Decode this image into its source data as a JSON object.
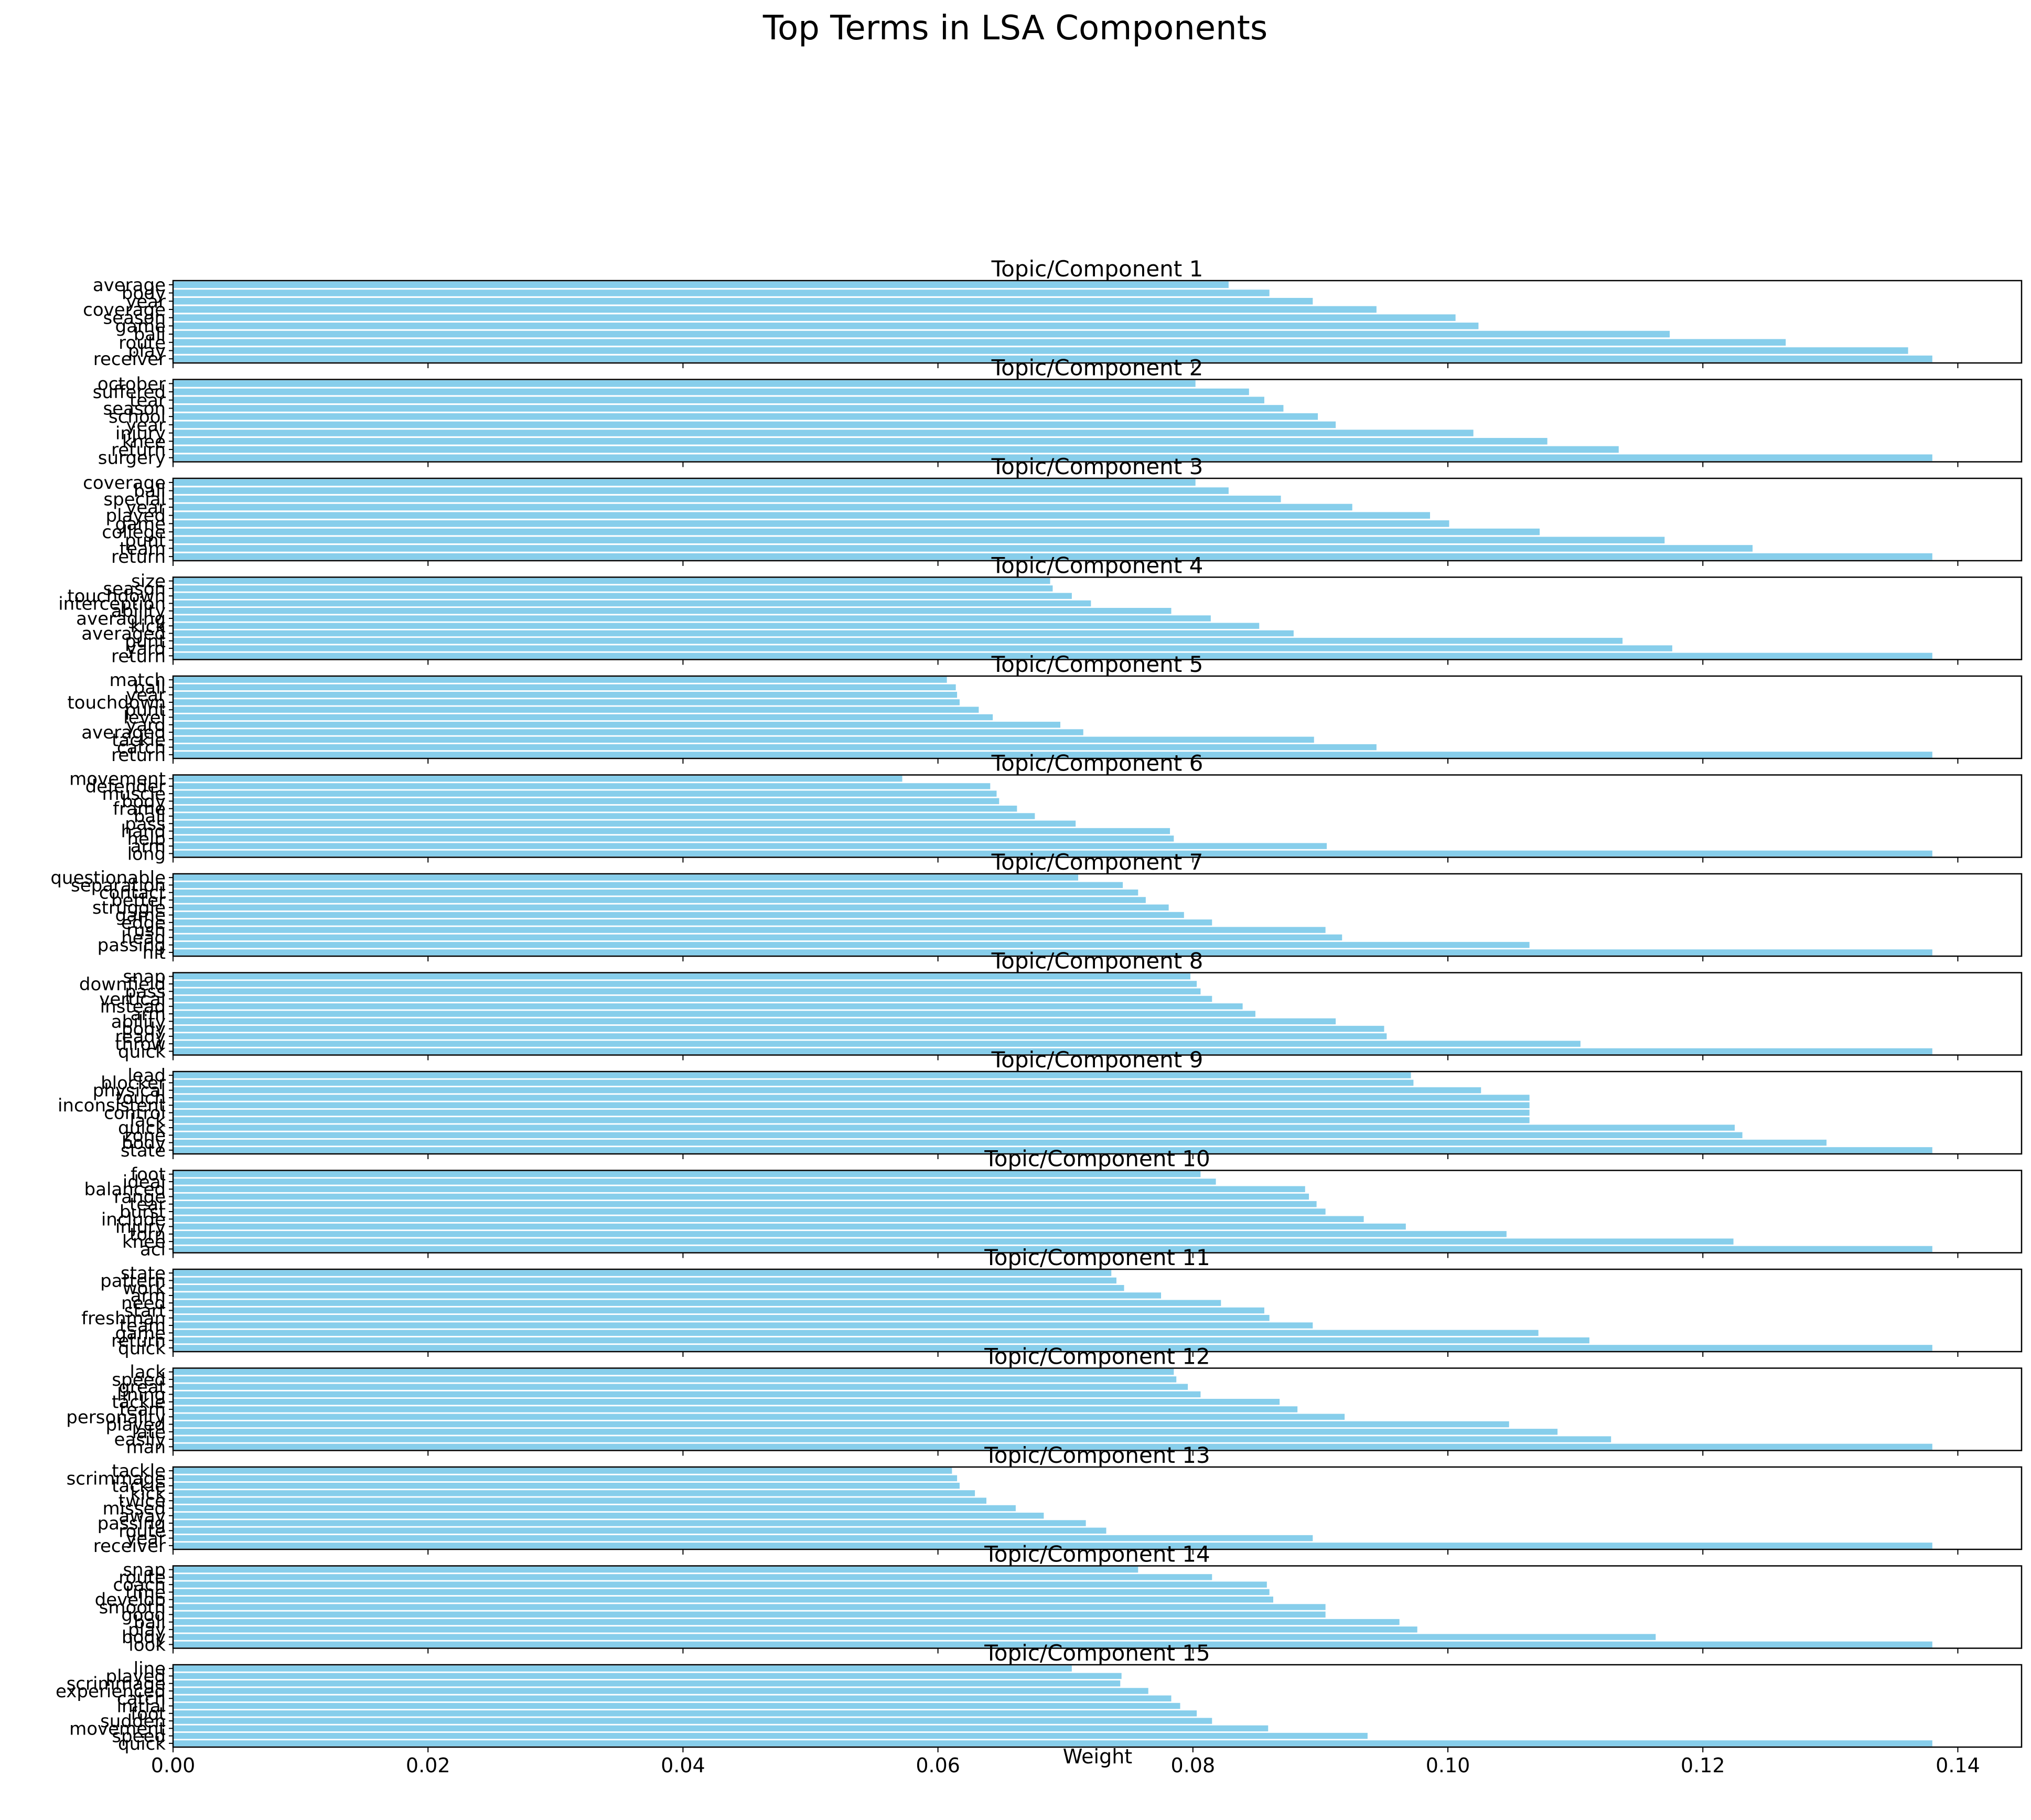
{
  "chart_data": {
    "type": "bar",
    "orientation": "horizontal",
    "title": "Top Terms in LSA Components",
    "xlabel": "Weight",
    "ylabel": "",
    "xlim": [
      0,
      0.145
    ],
    "x_ticks": [
      "0.00",
      "0.02",
      "0.04",
      "0.06",
      "0.08",
      "0.10",
      "0.12",
      "0.14"
    ],
    "grid": false,
    "bar_color": "#87CEEB",
    "panels": [
      {
        "title": "Topic/Component 1",
        "terms": [
          "receiver",
          "play",
          "route",
          "ball",
          "game",
          "season",
          "coverage",
          "year",
          "body",
          "average"
        ],
        "values": [
          0.138,
          0.1361,
          0.1265,
          0.1174,
          0.1024,
          0.1006,
          0.0944,
          0.0894,
          0.086,
          0.0828
        ]
      },
      {
        "title": "Topic/Component 2",
        "terms": [
          "surgery",
          "return",
          "knee",
          "injury",
          "year",
          "school",
          "season",
          "tear",
          "suffered",
          "october"
        ],
        "values": [
          0.138,
          0.1134,
          0.1078,
          0.102,
          0.0912,
          0.0898,
          0.0871,
          0.0856,
          0.0844,
          0.0802
        ]
      },
      {
        "title": "Topic/Component 3",
        "terms": [
          "return",
          "team",
          "punt",
          "college",
          "game",
          "played",
          "year",
          "special",
          "ball",
          "coverage"
        ],
        "values": [
          0.138,
          0.1239,
          0.117,
          0.1072,
          0.1001,
          0.0986,
          0.0925,
          0.0869,
          0.0828,
          0.0802
        ]
      },
      {
        "title": "Topic/Component 4",
        "terms": [
          "return",
          "yard",
          "punt",
          "averaged",
          "kick",
          "averaging",
          "ability",
          "interception",
          "touchdown",
          "season",
          "size"
        ],
        "values": [
          0.138,
          0.1176,
          0.1137,
          0.0879,
          0.0852,
          0.0814,
          0.0783,
          0.072,
          0.0705,
          0.069,
          0.0688
        ]
      },
      {
        "title": "Topic/Component 5",
        "terms": [
          "return",
          "catch",
          "tackle",
          "averaged",
          "yard",
          "level",
          "punt",
          "touchdown",
          "year",
          "ball",
          "match"
        ],
        "values": [
          0.138,
          0.0944,
          0.0895,
          0.0714,
          0.0696,
          0.0643,
          0.0632,
          0.0617,
          0.0615,
          0.0614,
          0.0607
        ]
      },
      {
        "title": "Topic/Component 6",
        "terms": [
          "long",
          "arm",
          "help",
          "hand",
          "pass",
          "ball",
          "frame",
          "body",
          "muscle",
          "defender",
          "movement"
        ],
        "values": [
          0.138,
          0.0905,
          0.0785,
          0.0782,
          0.0708,
          0.0676,
          0.0662,
          0.0648,
          0.0646,
          0.0641,
          0.0572
        ]
      },
      {
        "title": "Topic/Component 7",
        "terms": [
          "hit",
          "passing",
          "head",
          "rush",
          "edge",
          "game",
          "struggle",
          "better",
          "contact",
          "separation",
          "questionable"
        ],
        "values": [
          0.138,
          0.1064,
          0.0917,
          0.0904,
          0.0815,
          0.0793,
          0.0781,
          0.0763,
          0.0757,
          0.0745,
          0.071
        ]
      },
      {
        "title": "Topic/Component 8",
        "terms": [
          "quick",
          "throw",
          "ready",
          "body",
          "ability",
          "arm",
          "instead",
          "vertical",
          "pass",
          "downfield",
          "snap"
        ],
        "values": [
          0.138,
          0.1104,
          0.0952,
          0.095,
          0.0912,
          0.0849,
          0.0839,
          0.0815,
          0.0806,
          0.0803,
          0.0798
        ]
      },
      {
        "title": "Topic/Component 9",
        "terms": [
          "state",
          "body",
          "zone",
          "quick",
          "lack",
          "control",
          "inconsistent",
          "touch",
          "physical",
          "blocker",
          "lead"
        ],
        "values": [
          0.138,
          0.1297,
          0.1231,
          0.1225,
          0.1064,
          0.1064,
          0.1064,
          0.1064,
          0.1026,
          0.0973,
          0.0971
        ]
      },
      {
        "title": "Topic/Component 10",
        "terms": [
          "acl",
          "knee",
          "torn",
          "injury",
          "include",
          "burst",
          "tear",
          "range",
          "balanced",
          "ideal",
          "foot"
        ],
        "values": [
          0.138,
          0.1224,
          0.1046,
          0.0967,
          0.0934,
          0.0904,
          0.0897,
          0.0891,
          0.0888,
          0.0818,
          0.0806
        ]
      },
      {
        "title": "Topic/Component 11",
        "terms": [
          "quick",
          "return",
          "game",
          "team",
          "freshman",
          "start",
          "need",
          "arm",
          "work",
          "pattern",
          "state"
        ],
        "values": [
          0.138,
          0.1111,
          0.1071,
          0.0894,
          0.086,
          0.0856,
          0.0822,
          0.0775,
          0.0746,
          0.074,
          0.0736
        ]
      },
      {
        "title": "Topic/Component 12",
        "terms": [
          "man",
          "easily",
          "late",
          "played",
          "personality",
          "team",
          "tackle",
          "lining",
          "great",
          "speed",
          "lack"
        ],
        "values": [
          0.138,
          0.1128,
          0.1086,
          0.1048,
          0.0919,
          0.0882,
          0.0868,
          0.0806,
          0.0796,
          0.0787,
          0.0785
        ]
      },
      {
        "title": "Topic/Component 13",
        "terms": [
          "receiver",
          "year",
          "route",
          "passing",
          "away",
          "missed",
          "twice",
          "kick",
          "tackle",
          "scrimmage",
          "tackle"
        ],
        "values": [
          0.138,
          0.0894,
          0.0732,
          0.0716,
          0.0683,
          0.0661,
          0.0638,
          0.0629,
          0.0617,
          0.0615,
          0.0611
        ]
      },
      {
        "title": "Topic/Component 14",
        "terms": [
          "look",
          "body",
          "play",
          "ball",
          "good",
          "smooth",
          "develop",
          "time",
          "coach",
          "route",
          "snap"
        ],
        "values": [
          0.138,
          0.1163,
          0.0976,
          0.0962,
          0.0904,
          0.0904,
          0.0863,
          0.086,
          0.0858,
          0.0815,
          0.0757
        ]
      },
      {
        "title": "Topic/Component 15",
        "terms": [
          "quick",
          "speed",
          "movement",
          "sudden",
          "foot",
          "initial",
          "catch",
          "experienced",
          "scrimmage",
          "played",
          "line"
        ],
        "values": [
          0.138,
          0.0937,
          0.0859,
          0.0815,
          0.0803,
          0.079,
          0.0783,
          0.0765,
          0.0743,
          0.0744,
          0.0705
        ]
      }
    ]
  }
}
